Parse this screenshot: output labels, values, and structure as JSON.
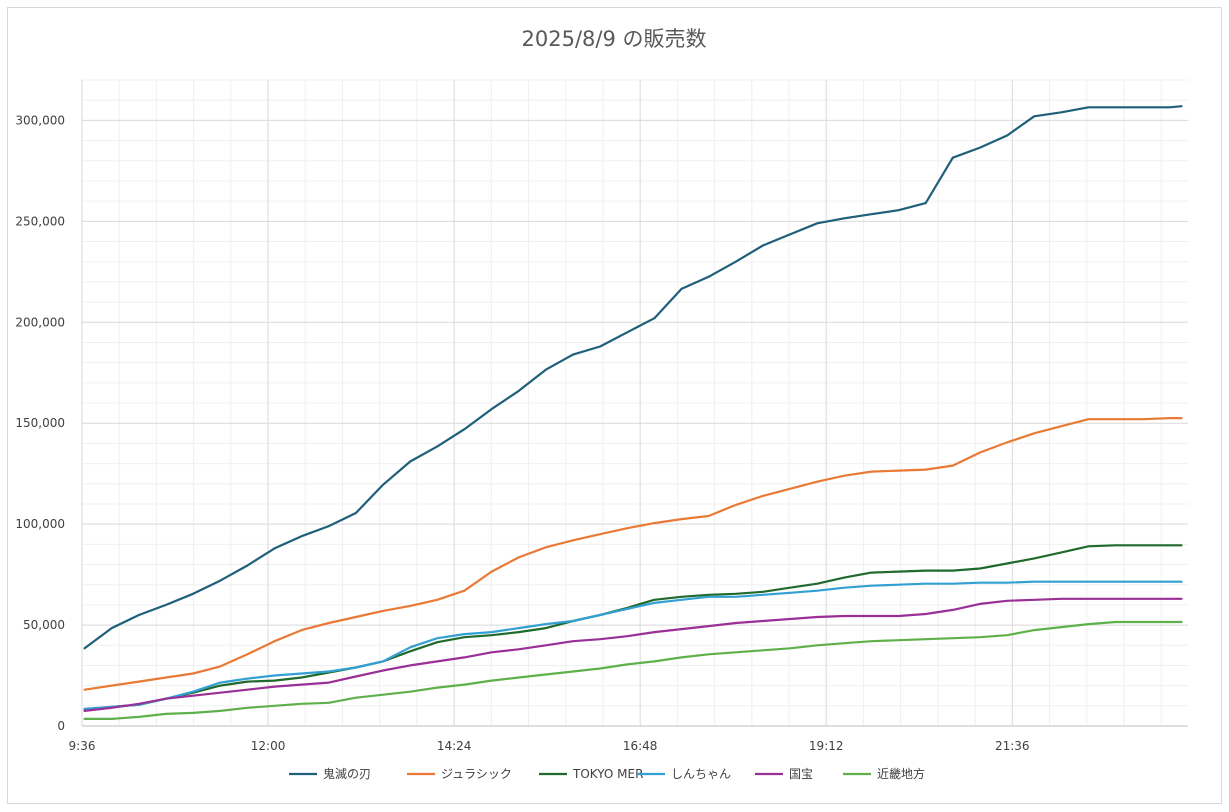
{
  "chart_data": {
    "type": "line",
    "title": "2025/8/9 の販売数",
    "xlabel": "",
    "ylabel": "",
    "ylim": [
      0,
      320000
    ],
    "y_ticks": [
      0,
      50000,
      100000,
      150000,
      200000,
      250000,
      300000
    ],
    "y_tick_labels": [
      "0",
      "50,000",
      "100,000",
      "150,000",
      "200,000",
      "250,000",
      "300,000"
    ],
    "x_range": [
      "9:36",
      "23:52"
    ],
    "x_ticks": [
      "9:36",
      "12:00",
      "14:24",
      "16:48",
      "19:12",
      "21:36"
    ],
    "grid": true,
    "legend_position": "bottom",
    "x": [
      "9:38",
      "9:59",
      "10:20",
      "10:41",
      "11:02",
      "11:23",
      "11:44",
      "12:05",
      "12:26",
      "12:47",
      "13:08",
      "13:29",
      "13:50",
      "14:11",
      "14:32",
      "14:53",
      "15:14",
      "15:35",
      "15:56",
      "16:17",
      "16:38",
      "16:59",
      "17:20",
      "17:41",
      "18:02",
      "18:23",
      "18:44",
      "19:05",
      "19:26",
      "19:47",
      "20:08",
      "20:29",
      "20:50",
      "21:11",
      "21:32",
      "21:53",
      "22:14",
      "22:35",
      "22:56",
      "23:17",
      "23:38",
      "23:47"
    ],
    "series": [
      {
        "name": "鬼滅の刃",
        "color": "#1f5f7a",
        "values": [
          38500,
          48500,
          55000,
          60000,
          65500,
          72000,
          79500,
          88000,
          94000,
          99000,
          105500,
          119500,
          131000,
          138500,
          147000,
          157000,
          166000,
          176500,
          184000,
          188000,
          195000,
          202000,
          216500,
          222500,
          230000,
          238000,
          243500,
          249000,
          251500,
          253500,
          255500,
          259000,
          281500,
          286500,
          292500,
          302000,
          304000,
          306500,
          306500,
          306500,
          306500,
          307000
        ]
      },
      {
        "name": "ジュラシック",
        "color": "#e97a35",
        "values": [
          18000,
          20000,
          22000,
          24000,
          26000,
          29500,
          35500,
          42000,
          47500,
          51000,
          54000,
          57000,
          59500,
          62500,
          67000,
          76500,
          83500,
          88500,
          92000,
          95000,
          98000,
          100500,
          102500,
          104000,
          109500,
          114000,
          117500,
          121000,
          124000,
          126000,
          126500,
          127000,
          129000,
          135500,
          140500,
          145000,
          148500,
          152000,
          152000,
          152000,
          152500,
          152500
        ]
      },
      {
        "name": "TOKYO MER",
        "color": "#1f6a2c",
        "values": [
          8000,
          9500,
          10500,
          13500,
          16500,
          20000,
          22000,
          22500,
          24000,
          26500,
          29000,
          32000,
          37000,
          41500,
          44000,
          45000,
          46500,
          48500,
          52000,
          55000,
          58500,
          62500,
          64000,
          65000,
          65500,
          66500,
          68500,
          70500,
          73500,
          76000,
          76500,
          77000,
          77000,
          78000,
          80500,
          83000,
          86000,
          89000,
          89500,
          89500,
          89500,
          89500
        ]
      },
      {
        "name": "しんちゃん",
        "color": "#33a0d3",
        "values": [
          8500,
          9500,
          10500,
          13500,
          17000,
          21500,
          23500,
          25000,
          26000,
          27000,
          29000,
          32000,
          39000,
          43500,
          45500,
          46500,
          48500,
          50500,
          52000,
          55000,
          58000,
          61000,
          62500,
          64000,
          64000,
          65000,
          66000,
          67000,
          68500,
          69500,
          70000,
          70500,
          70500,
          71000,
          71000,
          71500,
          71500,
          71500,
          71500,
          71500,
          71500,
          71500
        ]
      },
      {
        "name": "国宝",
        "color": "#9a2f96",
        "values": [
          7500,
          9000,
          11000,
          13500,
          15000,
          16500,
          18000,
          19500,
          20500,
          21500,
          24500,
          27500,
          30000,
          32000,
          34000,
          36500,
          38000,
          40000,
          42000,
          43000,
          44500,
          46500,
          48000,
          49500,
          51000,
          52000,
          53000,
          54000,
          54500,
          54500,
          54500,
          55500,
          57500,
          60500,
          62000,
          62500,
          63000,
          63000,
          63000,
          63000,
          63000,
          63000
        ]
      },
      {
        "name": "近畿地方",
        "color": "#5fb04a",
        "values": [
          3500,
          3500,
          4500,
          6000,
          6500,
          7500,
          9000,
          10000,
          11000,
          11500,
          14000,
          15500,
          17000,
          19000,
          20500,
          22500,
          24000,
          25500,
          27000,
          28500,
          30500,
          32000,
          34000,
          35500,
          36500,
          37500,
          38500,
          40000,
          41000,
          42000,
          42500,
          43000,
          43500,
          44000,
          45000,
          47500,
          49000,
          50500,
          51500,
          51500,
          51500,
          51500
        ]
      }
    ]
  }
}
